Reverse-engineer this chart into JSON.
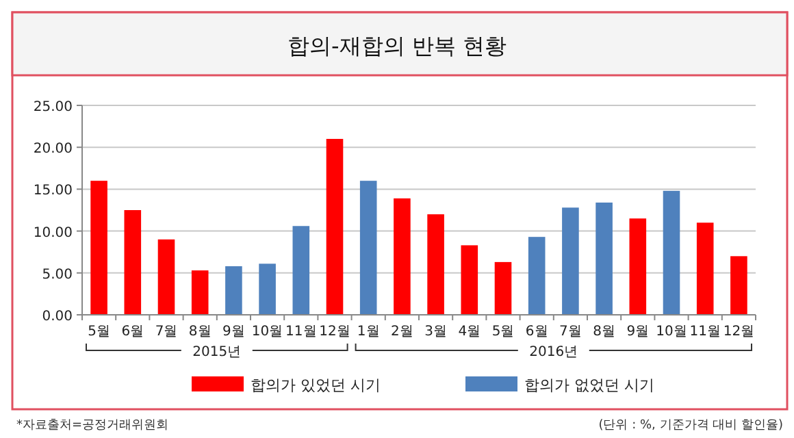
{
  "chart_data": {
    "type": "bar",
    "title": "합의-재합의 반복 현황",
    "categories": [
      "5월",
      "6월",
      "7월",
      "8월",
      "9월",
      "10월",
      "11월",
      "12월",
      "1월",
      "2월",
      "3월",
      "4월",
      "5월",
      "6월",
      "7월",
      "8월",
      "9월",
      "10월",
      "11월",
      "12월"
    ],
    "series": [
      {
        "name": "합의가 있었던 시기",
        "color": "#ff0000",
        "values": [
          16.0,
          12.5,
          9.0,
          5.3,
          null,
          null,
          null,
          21.0,
          null,
          13.9,
          12.0,
          8.3,
          6.3,
          null,
          null,
          null,
          11.5,
          null,
          11.0,
          7.0
        ]
      },
      {
        "name": "합의가 없었던 시기",
        "color": "#4f81bd",
        "values": [
          null,
          null,
          null,
          null,
          5.8,
          6.1,
          10.6,
          null,
          16.0,
          null,
          null,
          null,
          null,
          9.3,
          12.8,
          13.4,
          null,
          14.8,
          null,
          null
        ]
      }
    ],
    "ylim": [
      0,
      25
    ],
    "yticks": [
      {
        "value": 0,
        "label": "0.00"
      },
      {
        "value": 5,
        "label": "5.00"
      },
      {
        "value": 10,
        "label": "10.00"
      },
      {
        "value": 15,
        "label": "15.00"
      },
      {
        "value": 20,
        "label": "20.00"
      },
      {
        "value": 25,
        "label": "25.00"
      }
    ],
    "grid": "y",
    "legend": "bottom",
    "annotations": [
      "2015년",
      "2016년",
      "*자료출처=공정거래위원회",
      "(단위 : %, 기준가격 대비 할인율)"
    ]
  }
}
